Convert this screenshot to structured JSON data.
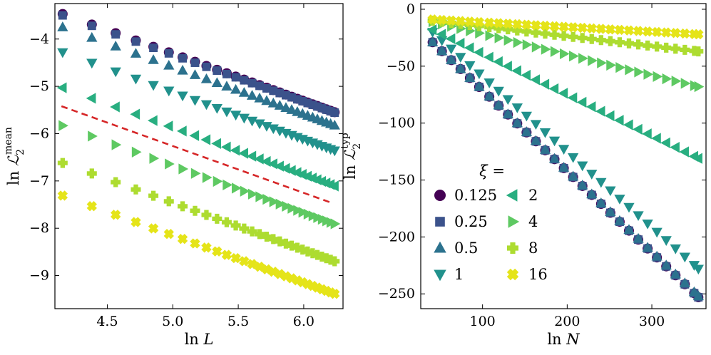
{
  "chart_data": [
    {
      "type": "scatter",
      "xlabel_base": "ln ",
      "xlabel_var": "L",
      "ylabel_base": "ln ",
      "ylabel_var": "ℒ",
      "ylabel_sub": "2",
      "ylabel_sup": "mean",
      "xlim": [
        4.1,
        6.3
      ],
      "ylim": [
        -9.7,
        -3.25
      ],
      "xticks": [
        4.5,
        5.0,
        5.5,
        6.0
      ],
      "xtick_labels": [
        "4.5",
        "5.0",
        "5.5",
        "6.0"
      ],
      "yticks": [
        -4,
        -5,
        -6,
        -7,
        -8,
        -9
      ],
      "ytick_labels": [
        "−4",
        "−5",
        "−6",
        "−7",
        "−8",
        "−9"
      ],
      "reference_line": {
        "color": "#d62728",
        "style": "dashed",
        "x": [
          4.15,
          6.22
        ],
        "y": [
          -5.42,
          -7.47
        ]
      },
      "x": [
        4.159,
        4.382,
        4.564,
        4.718,
        4.852,
        4.97,
        5.075,
        5.17,
        5.257,
        5.338,
        5.412,
        5.481,
        5.545,
        5.606,
        5.663,
        5.717,
        5.768,
        5.817,
        5.864,
        5.908,
        5.951,
        5.991,
        6.03,
        6.068,
        6.104,
        6.139,
        6.173,
        6.205,
        6.236
      ],
      "series": [
        {
          "name": "0.125",
          "marker": "circle",
          "color": "#440154",
          "start": -3.47,
          "slope": -1.0
        },
        {
          "name": "0.25",
          "marker": "square",
          "color": "#3b528b",
          "start": -3.5,
          "slope": -0.99
        },
        {
          "name": "0.5",
          "marker": "triangle-up",
          "color": "#2c728e",
          "start": -3.75,
          "slope": -1.0
        },
        {
          "name": "1",
          "marker": "triangle-down",
          "color": "#21918c",
          "start": -4.28,
          "slope": -1.0
        },
        {
          "name": "2",
          "marker": "triangle-left",
          "color": "#28ae80",
          "start": -5.03,
          "slope": -1.0
        },
        {
          "name": "4",
          "marker": "triangle-right",
          "color": "#5ec962",
          "start": -5.83,
          "slope": -1.0
        },
        {
          "name": "8",
          "marker": "plus",
          "color": "#addc30",
          "start": -6.62,
          "slope": -1.0
        },
        {
          "name": "16",
          "marker": "x",
          "color": "#e5e419",
          "start": -7.31,
          "slope": -1.0
        }
      ]
    },
    {
      "type": "scatter",
      "xlabel_base": "ln ",
      "xlabel_var": "N",
      "ylabel_base": "ln ",
      "ylabel_var": "ℒ",
      "ylabel_sub": "2",
      "ylabel_sup": "typ",
      "xlim": [
        27,
        364
      ],
      "ylim": [
        -263,
        5
      ],
      "xticks": [
        100,
        200,
        300
      ],
      "xtick_labels": [
        "100",
        "200",
        "300"
      ],
      "yticks": [
        0,
        -50,
        -100,
        -150,
        -200,
        -250
      ],
      "ytick_labels": [
        "0",
        "−50",
        "−100",
        "−150",
        "−200",
        "−250"
      ],
      "x": [
        41,
        52,
        63,
        74,
        85,
        96,
        108,
        119,
        130,
        141,
        152,
        163,
        174,
        185,
        196,
        207,
        218,
        229,
        240,
        251,
        262,
        273,
        284,
        295,
        306,
        317,
        328,
        339,
        350,
        355
      ],
      "series": [
        {
          "name": "0.125",
          "marker": "circle",
          "color": "#440154",
          "y0": -29,
          "y1": -253
        },
        {
          "name": "0.25",
          "marker": "square",
          "color": "#3b528b",
          "y0": -29,
          "y1": -253
        },
        {
          "name": "0.5",
          "marker": "triangle-up",
          "color": "#2c728e",
          "y0": -29,
          "y1": -252
        },
        {
          "name": "1",
          "marker": "triangle-down",
          "color": "#21918c",
          "y0": -20,
          "y1": -228
        },
        {
          "name": "2",
          "marker": "triangle-left",
          "color": "#28ae80",
          "y0": -18,
          "y1": -131
        },
        {
          "name": "4",
          "marker": "triangle-right",
          "color": "#5ec962",
          "y0": -11,
          "y1": -68
        },
        {
          "name": "8",
          "marker": "plus",
          "color": "#addc30",
          "y0": -10,
          "y1": -37
        },
        {
          "name": "16",
          "marker": "x",
          "color": "#e5e419",
          "y0": -9,
          "y1": -22
        }
      ],
      "legend": {
        "title": "ξ =",
        "placement": "lower-left",
        "entries": [
          "0.125",
          "0.25",
          "0.5",
          "1",
          "2",
          "4",
          "8",
          "16"
        ]
      }
    }
  ]
}
